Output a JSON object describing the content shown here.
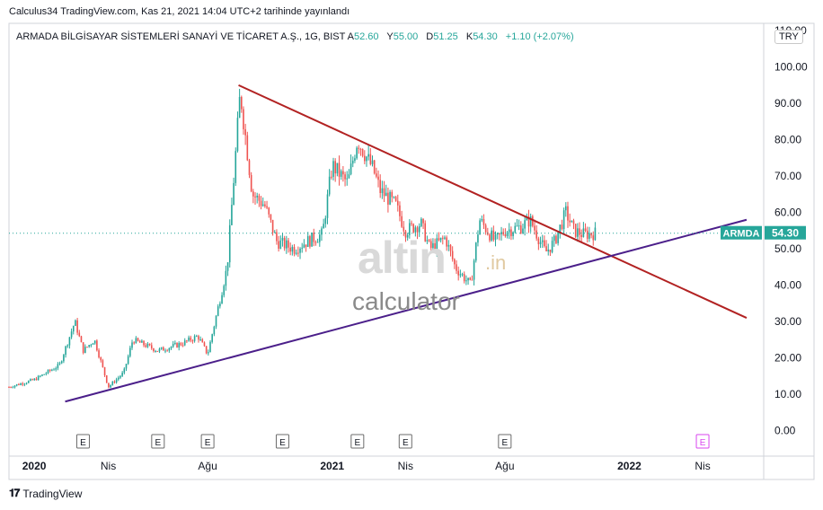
{
  "header": {
    "publish_line": "Calculus34 TradingView.com, Kas 21, 2021 14:04 UTC+2 tarihinde yayınlandı"
  },
  "legend": {
    "symbol": "ARMADA BİLGİSAYAR SİSTEMLERİ SANAYİ VE TİCARET A.Ş., 1G, BIST",
    "open_label": "A",
    "open": "52.60",
    "high_label": "Y",
    "high": "55.00",
    "low_label": "D",
    "low": "51.25",
    "close_label": "K",
    "close": "54.30",
    "change": "+1.10 (+2.07%)"
  },
  "currency": "TRY",
  "price_tag": {
    "ticker": "ARMDA",
    "price": "54.30"
  },
  "watermark": {
    "brand": "altin",
    "brand_suffix": ".in",
    "sub": "calculator"
  },
  "footer": {
    "brand": "TradingView"
  },
  "colors": {
    "up": "#26a69a",
    "down": "#ef5350",
    "resistance": "#b22222",
    "support": "#4b1f8a",
    "tag": "#26a69a"
  },
  "chart_data": {
    "type": "candlestick",
    "title": "",
    "xlabel": "",
    "ylabel": "",
    "ylim": [
      -7,
      112
    ],
    "y_ticks": [
      "0.00",
      "10.00",
      "20.00",
      "30.00",
      "40.00",
      "50.00",
      "60.00",
      "70.00",
      "80.00",
      "90.00",
      "100.00",
      "110.00"
    ],
    "x_ticks": [
      {
        "label": "2020",
        "date": "2020-01"
      },
      {
        "label": "Nis",
        "date": "2020-04"
      },
      {
        "label": "Ağu",
        "date": "2020-08"
      },
      {
        "label": "2021",
        "date": "2021-01"
      },
      {
        "label": "Nis",
        "date": "2021-04"
      },
      {
        "label": "Ağu",
        "date": "2021-08"
      },
      {
        "label": "2022",
        "date": "2022-01"
      },
      {
        "label": "Nis",
        "date": "2022-04"
      }
    ],
    "grid": false,
    "last_price": 54.3,
    "price_path": [
      [
        "2019-12",
        12
      ],
      [
        "2020-01",
        14
      ],
      [
        "2020-02",
        18
      ],
      [
        "2020-02-20",
        30
      ],
      [
        "2020-03",
        22
      ],
      [
        "2020-03-15",
        25
      ],
      [
        "2020-04",
        12
      ],
      [
        "2020-04-20",
        16
      ],
      [
        "2020-05",
        25
      ],
      [
        "2020-06",
        22
      ],
      [
        "2020-07",
        24
      ],
      [
        "2020-07-20",
        26
      ],
      [
        "2020-08",
        21
      ],
      [
        "2020-08-10",
        30
      ],
      [
        "2020-08-25",
        45
      ],
      [
        "2020-09-10",
        93
      ],
      [
        "2020-09-25",
        65
      ],
      [
        "2020-10-10",
        62
      ],
      [
        "2020-10-25",
        52
      ],
      [
        "2020-11-15",
        50
      ],
      [
        "2020-12",
        52
      ],
      [
        "2020-12-20",
        54
      ],
      [
        "2021-01",
        73
      ],
      [
        "2021-01-20",
        68
      ],
      [
        "2021-02",
        80
      ],
      [
        "2021-02-20",
        72
      ],
      [
        "2021-03",
        66
      ],
      [
        "2021-03-20",
        62
      ],
      [
        "2021-04",
        55
      ],
      [
        "2021-04-20",
        57
      ],
      [
        "2021-05",
        50
      ],
      [
        "2021-05-20",
        53
      ],
      [
        "2021-06",
        45
      ],
      [
        "2021-06-20",
        40
      ],
      [
        "2021-07",
        58
      ],
      [
        "2021-07-20",
        52
      ],
      [
        "2021-08",
        55
      ],
      [
        "2021-08-20",
        56
      ],
      [
        "2021-09",
        58
      ],
      [
        "2021-09-20",
        49
      ],
      [
        "2021-10",
        52
      ],
      [
        "2021-10-15",
        60
      ],
      [
        "2021-10-25",
        55
      ],
      [
        "2021-11-05",
        54
      ],
      [
        "2021-11-20",
        54.3
      ]
    ],
    "earnings_markers": [
      "2020-03",
      "2020-06",
      "2020-08",
      "2020-11",
      "2021-02",
      "2021-04",
      "2021-08"
    ],
    "future_earnings_marker": "2022-04",
    "trendlines": [
      {
        "name": "",
        "from": [
          "2020-09-08",
          95
        ],
        "to": [
          "2022-05-25",
          31
        ],
        "color": "resistance"
      },
      {
        "name": "",
        "from": [
          "2020-02-08",
          8
        ],
        "to": [
          "2022-05-25",
          58
        ],
        "color": "support"
      }
    ]
  }
}
